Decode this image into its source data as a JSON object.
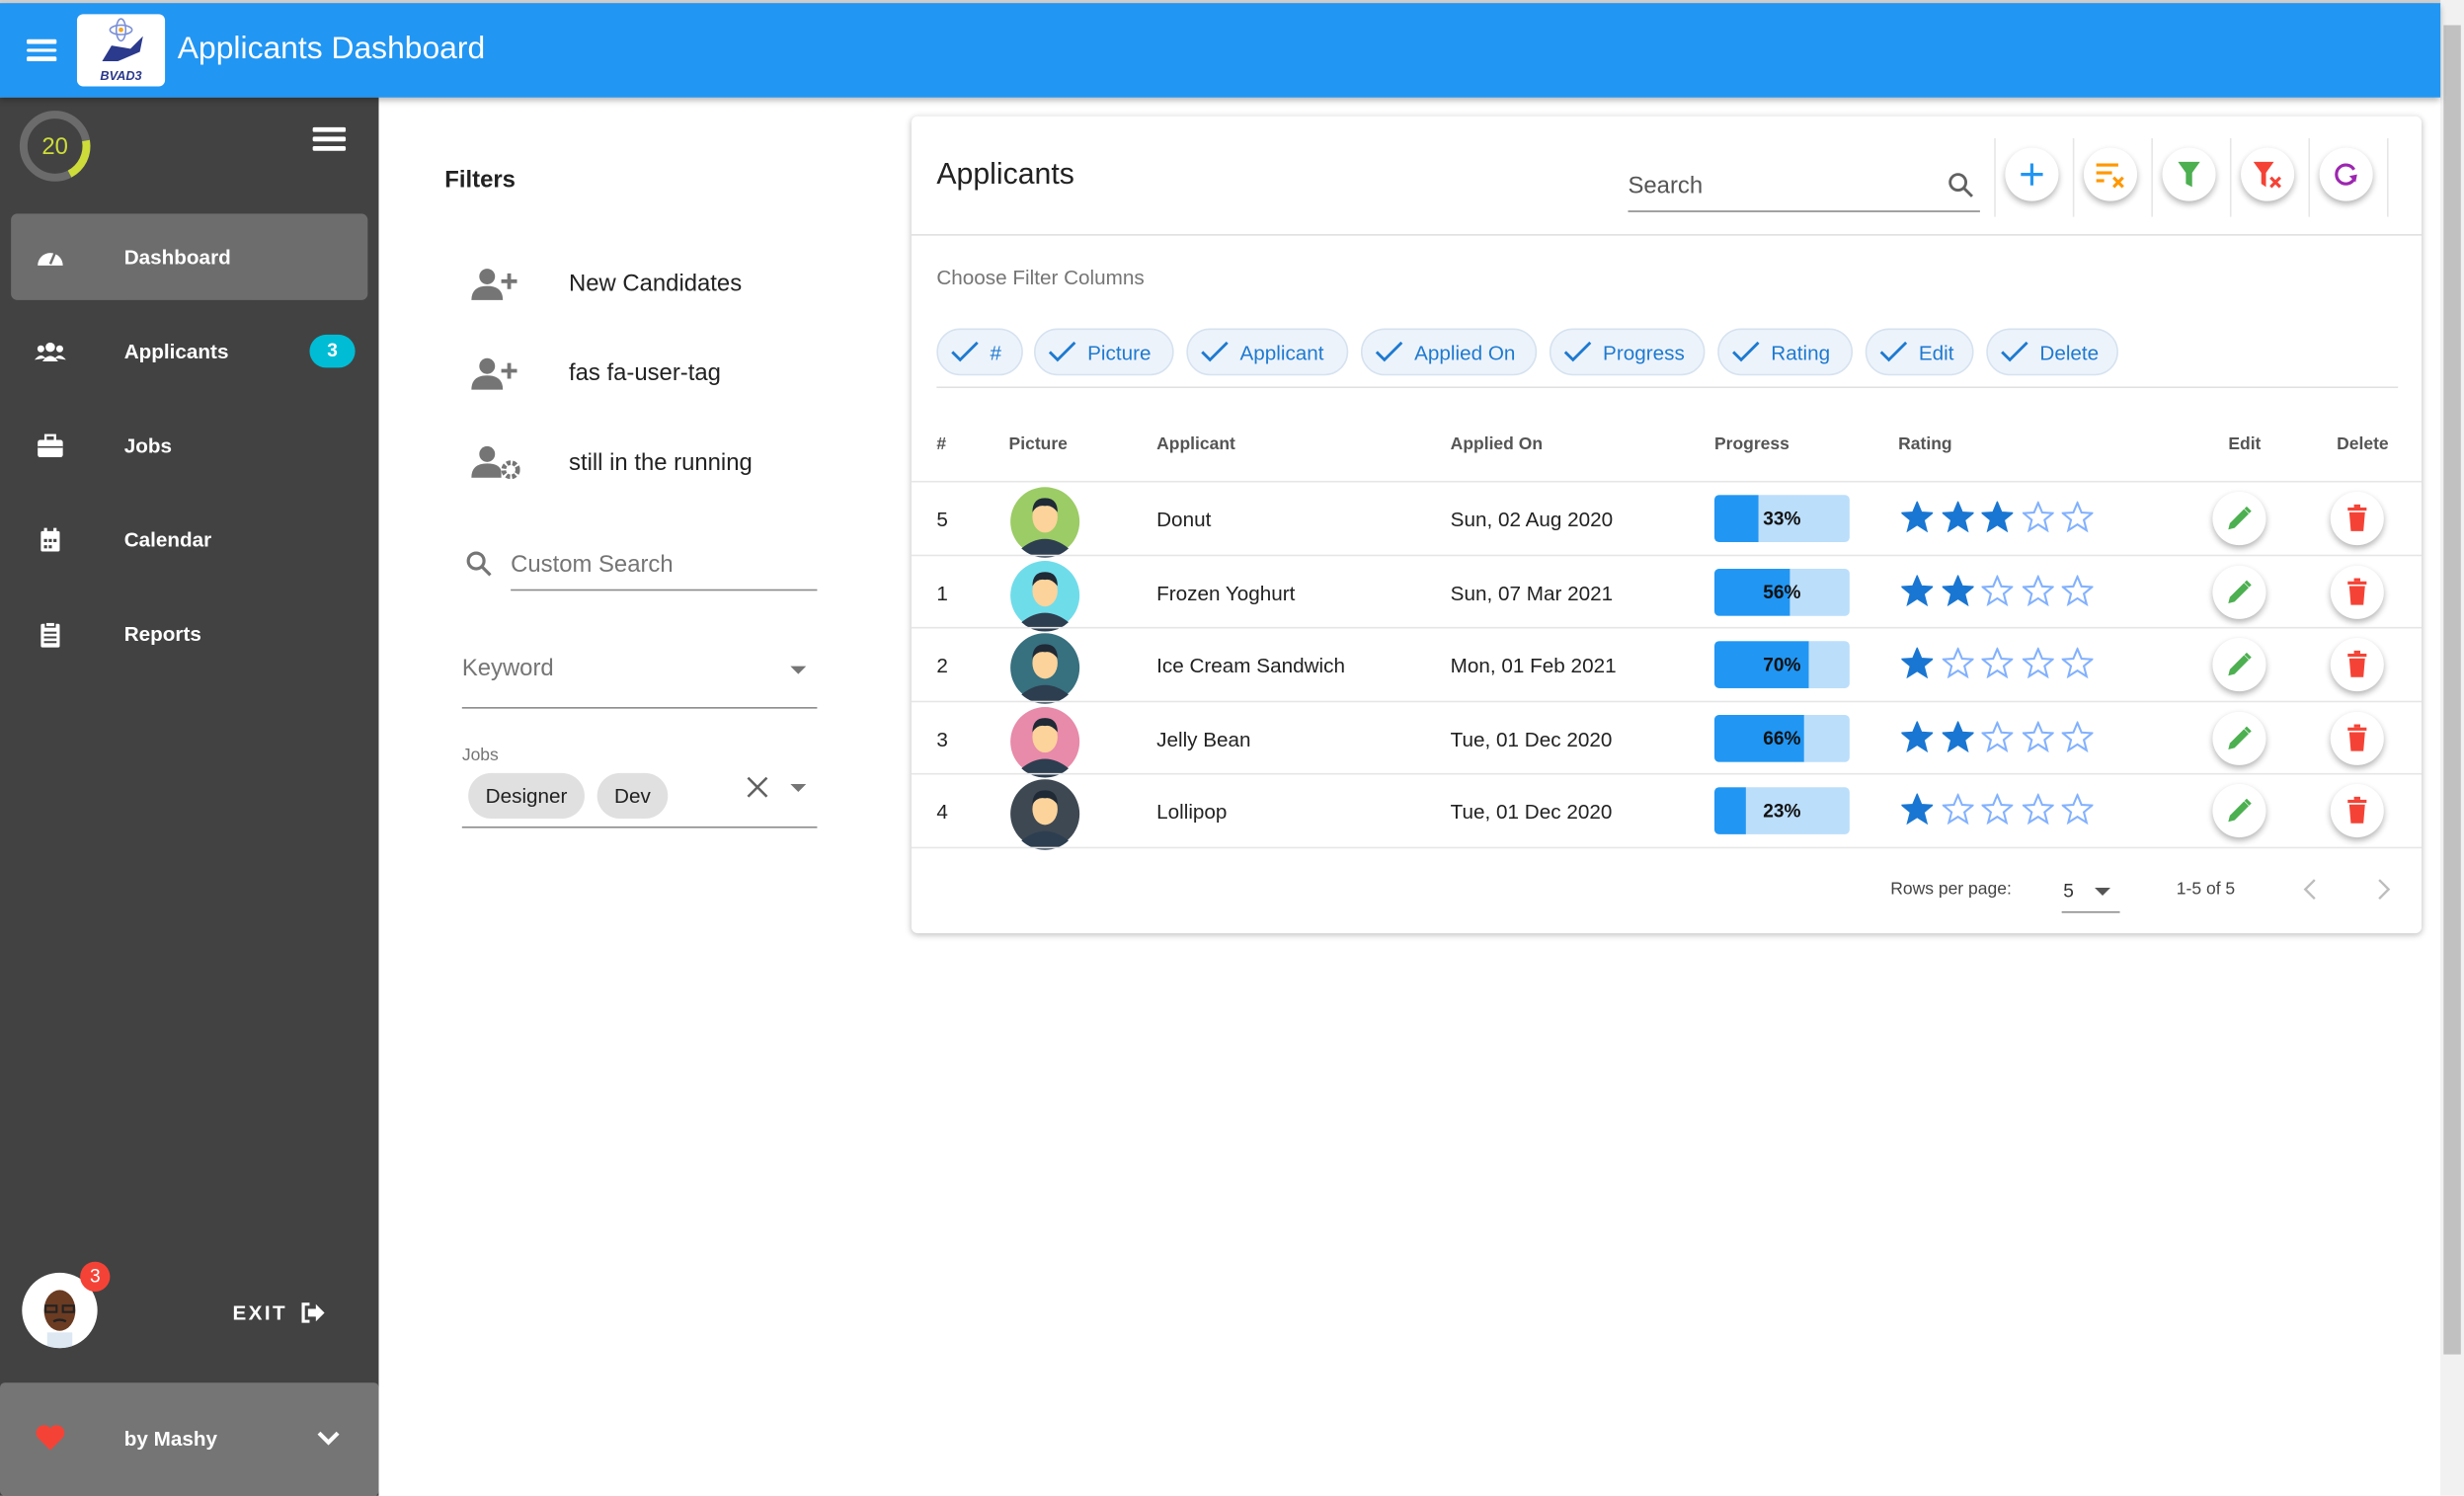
{
  "header": {
    "title": "Applicants Dashboard",
    "logo_text": "BVAD3",
    "color": "#2196f3"
  },
  "sidebar": {
    "gauge_value": "20",
    "gauge_fraction": 0.2,
    "items": [
      {
        "label": "Dashboard",
        "icon": "tachometer-icon",
        "active": true
      },
      {
        "label": "Applicants",
        "icon": "users-icon",
        "badge": "3"
      },
      {
        "label": "Jobs",
        "icon": "briefcase-icon"
      },
      {
        "label": "Calendar",
        "icon": "calendar-icon"
      },
      {
        "label": "Reports",
        "icon": "clipboard-icon"
      }
    ],
    "user_badge": "3",
    "exit_label": "EXIT",
    "footer_label": "by Mashy"
  },
  "filters": {
    "title": "Filters",
    "items": [
      {
        "label": "New Candidates",
        "icon": "user-plus-icon"
      },
      {
        "label": "fas fa-user-tag",
        "icon": "user-plus-icon"
      },
      {
        "label": "still in the running",
        "icon": "user-cog-icon"
      }
    ],
    "custom_search_placeholder": "Custom Search",
    "keyword_placeholder": "Keyword",
    "jobs_label": "Jobs",
    "jobs_selected": [
      "Designer",
      "Dev"
    ]
  },
  "applicants": {
    "title": "Applicants",
    "search_placeholder": "Search",
    "choose_columns_label": "Choose Filter Columns",
    "column_chips": [
      "#",
      "Picture",
      "Applicant",
      "Applied On",
      "Progress",
      "Rating",
      "Edit",
      "Delete"
    ],
    "headers": [
      "#",
      "Picture",
      "Applicant",
      "Applied On",
      "Progress",
      "Rating",
      "Edit",
      "Delete"
    ],
    "rows": [
      {
        "id": "5",
        "name": "Donut",
        "applied_on": "Sun, 02 Aug 2020",
        "progress": 33,
        "progress_label": "33%",
        "rating": 3,
        "avatar_bg": "#9ccc65"
      },
      {
        "id": "1",
        "name": "Frozen Yoghurt",
        "applied_on": "Sun, 07 Mar 2021",
        "progress": 56,
        "progress_label": "56%",
        "rating": 2,
        "avatar_bg": "#6fdcea"
      },
      {
        "id": "2",
        "name": "Ice Cream Sandwich",
        "applied_on": "Mon, 01 Feb 2021",
        "progress": 70,
        "progress_label": "70%",
        "rating": 1,
        "avatar_bg": "#37707f"
      },
      {
        "id": "3",
        "name": "Jelly Bean",
        "applied_on": "Tue, 01 Dec 2020",
        "progress": 66,
        "progress_label": "66%",
        "rating": 2,
        "avatar_bg": "#e88aa9"
      },
      {
        "id": "4",
        "name": "Lollipop",
        "applied_on": "Tue, 01 Dec 2020",
        "progress": 23,
        "progress_label": "23%",
        "rating": 1,
        "avatar_bg": "#3e4852"
      }
    ],
    "rows_per_page_label": "Rows per page:",
    "rows_per_page": "5",
    "range_label": "1-5 of 5"
  }
}
